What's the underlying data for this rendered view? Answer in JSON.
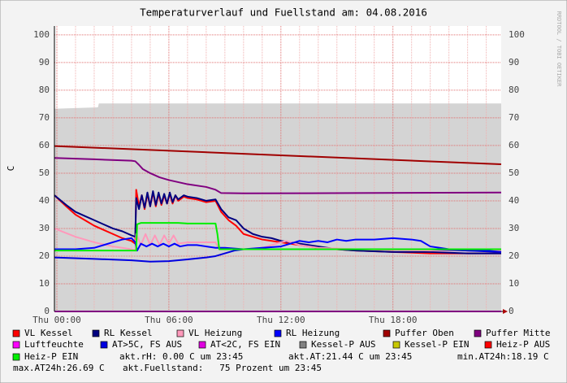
{
  "chart_data": {
    "type": "line",
    "title": "Temperaturverlauf und Fuellstand am: 04.08.2016",
    "y_label": "C",
    "watermark": "RRDTOOL / TOBI OETIKER",
    "xlim": [
      -0.13,
      23.8
    ],
    "ylim": [
      0,
      103.2
    ],
    "yticks": [
      0,
      10,
      20,
      30,
      40,
      50,
      60,
      70,
      80,
      90,
      100
    ],
    "xticks": [
      {
        "value": 0,
        "label": "Thu 00:00"
      },
      {
        "value": 6,
        "label": "Thu 06:00"
      },
      {
        "value": 12,
        "label": "Thu 12:00"
      },
      {
        "value": 18,
        "label": "Thu 18:00"
      }
    ],
    "x_minor_ticks": [
      1,
      2,
      3,
      4,
      5,
      7,
      8,
      9,
      10,
      11,
      13,
      14,
      15,
      16,
      17,
      19,
      20,
      21,
      22,
      23
    ],
    "grid": true,
    "area": {
      "color": "#d4d4d4",
      "x": [
        -0.13,
        2.2,
        2.25,
        23.8
      ],
      "values": [
        73.3,
        73.8,
        75.2,
        75.2
      ]
    },
    "series": [
      {
        "name": "VL Kessel",
        "color": "#ff0000",
        "x": [
          -0.13,
          0.5,
          1,
          1.5,
          2,
          2.5,
          3,
          3.5,
          4,
          4.2,
          4.25,
          4.4,
          4.55,
          4.7,
          4.85,
          5,
          5.15,
          5.3,
          5.45,
          5.6,
          5.75,
          5.9,
          6.05,
          6.2,
          6.35,
          6.5,
          6.8,
          7,
          7.5,
          8,
          8.5,
          8.8,
          9.2,
          9.6,
          10,
          10.5,
          11,
          11.5,
          12,
          12.5,
          13,
          14,
          15,
          16,
          18,
          20,
          22,
          23.8
        ],
        "values": [
          42,
          38,
          35,
          33,
          31,
          29.5,
          28,
          26.5,
          25.5,
          24.5,
          44,
          38,
          42,
          37,
          42.5,
          38,
          43,
          38,
          42.5,
          38.5,
          42,
          39,
          42.5,
          39,
          42,
          40,
          41.5,
          41,
          40.5,
          39.5,
          40,
          36,
          33,
          31,
          28,
          27,
          26,
          25.5,
          25,
          24.5,
          24,
          23,
          22.5,
          22,
          21.5,
          21,
          21,
          21
        ]
      },
      {
        "name": "RL Kessel",
        "color": "#000080",
        "x": [
          -0.13,
          0.5,
          1,
          1.5,
          2,
          2.5,
          3,
          3.5,
          4,
          4.2,
          4.25,
          4.4,
          4.55,
          4.7,
          4.85,
          5,
          5.15,
          5.3,
          5.45,
          5.6,
          5.75,
          5.9,
          6.05,
          6.2,
          6.35,
          6.5,
          6.8,
          7,
          7.5,
          8,
          8.5,
          8.8,
          9.2,
          9.6,
          10,
          10.5,
          11,
          11.5,
          12,
          12.5,
          13,
          14,
          15,
          16,
          18,
          20,
          22,
          23.8
        ],
        "values": [
          42,
          38.5,
          36,
          34.5,
          33,
          31.5,
          30,
          29,
          27.5,
          27,
          41,
          37,
          42,
          37.5,
          43,
          38,
          43.5,
          38.5,
          43,
          39,
          42.5,
          39,
          43,
          39.5,
          42,
          40.5,
          42,
          41.5,
          41,
          40,
          40.5,
          37,
          34,
          33,
          30,
          28,
          27,
          26.5,
          25.5,
          25,
          24.5,
          23.5,
          22.5,
          22,
          21.5,
          21.5,
          21,
          21
        ]
      },
      {
        "name": "VL Heizung",
        "color": "#ff99bb",
        "x": [
          -0.13,
          1,
          2,
          3,
          4,
          4.2,
          4.25,
          4.5,
          4.75,
          5,
          5.25,
          5.5,
          5.75,
          6,
          6.25,
          6.5,
          7,
          8,
          8.5,
          8.7,
          9,
          10,
          11,
          11.5,
          12,
          12.3,
          13,
          14,
          16,
          20,
          23.8
        ],
        "values": [
          30,
          27,
          25,
          23.5,
          22.5,
          22,
          28,
          24,
          28,
          24,
          27.5,
          24,
          27.5,
          24.5,
          27.5,
          24.5,
          25,
          25,
          25,
          22.5,
          22.5,
          22.5,
          23,
          24,
          25,
          25.5,
          24,
          23,
          22.5,
          22,
          22
        ]
      },
      {
        "name": "RL Heizung",
        "color": "#0000ff",
        "x": [
          -0.13,
          1,
          2,
          2.5,
          3,
          3.5,
          4,
          4.2,
          4.3,
          4.5,
          4.8,
          5.1,
          5.4,
          5.7,
          6,
          6.3,
          6.6,
          7,
          7.5,
          8,
          8.5,
          9,
          10,
          11,
          12,
          12.5,
          13,
          13.5,
          14,
          14.5,
          15,
          15.5,
          16,
          17,
          18,
          19,
          19.5,
          20,
          20.5,
          21,
          22,
          23,
          23.8
        ],
        "values": [
          22.5,
          22.5,
          23,
          24,
          25,
          26,
          26.5,
          25,
          22,
          24.5,
          23.5,
          24.5,
          23.5,
          24.5,
          23.5,
          24.5,
          23.5,
          24,
          24,
          23.5,
          23,
          23,
          22.5,
          23,
          23.5,
          24.5,
          25.5,
          25,
          25.5,
          25,
          26,
          25.5,
          26,
          26,
          26.5,
          26,
          25.5,
          23.5,
          23,
          22.5,
          22,
          22,
          21.5
        ]
      },
      {
        "name": "Puffer Oben",
        "color": "#a00000",
        "x": [
          -0.13,
          23.8
        ],
        "values": [
          59.8,
          53.2
        ]
      },
      {
        "name": "Puffer Mitte",
        "color": "#800080",
        "x": [
          -0.13,
          2,
          4,
          4.2,
          4.4,
          4.6,
          5,
          5.5,
          6,
          7,
          8,
          8.5,
          8.8,
          10,
          16,
          23.8
        ],
        "values": [
          55.5,
          55,
          54.5,
          54.3,
          53,
          51.5,
          50,
          48.5,
          47.5,
          46,
          45,
          44,
          42.8,
          42.7,
          42.8,
          43
        ]
      },
      {
        "name": "Luftfeuchte",
        "color": "#ff00ff",
        "x": [
          -0.13,
          23.8
        ],
        "values": [
          0,
          0
        ]
      },
      {
        "name": "AT>5C, FS AUS",
        "color": "#0000e0",
        "x": [
          -0.13,
          2,
          4,
          5,
          6,
          7,
          8,
          8.5,
          9,
          9.5,
          10,
          11,
          12,
          13,
          14,
          16,
          18,
          20,
          22,
          23.8
        ],
        "values": [
          19.5,
          19,
          18.5,
          18,
          18.2,
          18.8,
          19.5,
          20,
          21,
          22,
          22.5,
          22.5,
          22.5,
          22.5,
          22.5,
          22.5,
          22.5,
          22.5,
          22,
          21.5
        ]
      },
      {
        "name": "AT<2C, FS EIN",
        "color": "#e000e0",
        "x": [],
        "values": []
      },
      {
        "name": "Kessel-P AUS",
        "color": "#808080",
        "x": [],
        "values": []
      },
      {
        "name": "Kessel-P EIN",
        "color": "#c8c800",
        "x": [],
        "values": []
      },
      {
        "name": "Heiz-P AUS",
        "color": "#ff0000",
        "x": [],
        "values": []
      },
      {
        "name": "Heiz-P EIN",
        "color": "#00ee00",
        "x": [
          -0.13,
          4.25,
          4.3,
          4.5,
          6.5,
          7,
          8.5,
          8.6,
          8.7,
          23.8
        ],
        "values": [
          22,
          22,
          31.5,
          32,
          32,
          31.8,
          31.8,
          28,
          22.5,
          22.5
        ]
      }
    ],
    "comments": [
      "akt.rH: 0.00 C um 23:45",
      "akt.AT:21.44 C um 23:45",
      "min.AT24h:18.19 C",
      "max.AT24h:26.69 C",
      "akt.Fuellstand:   75 Prozent um 23:45"
    ]
  }
}
